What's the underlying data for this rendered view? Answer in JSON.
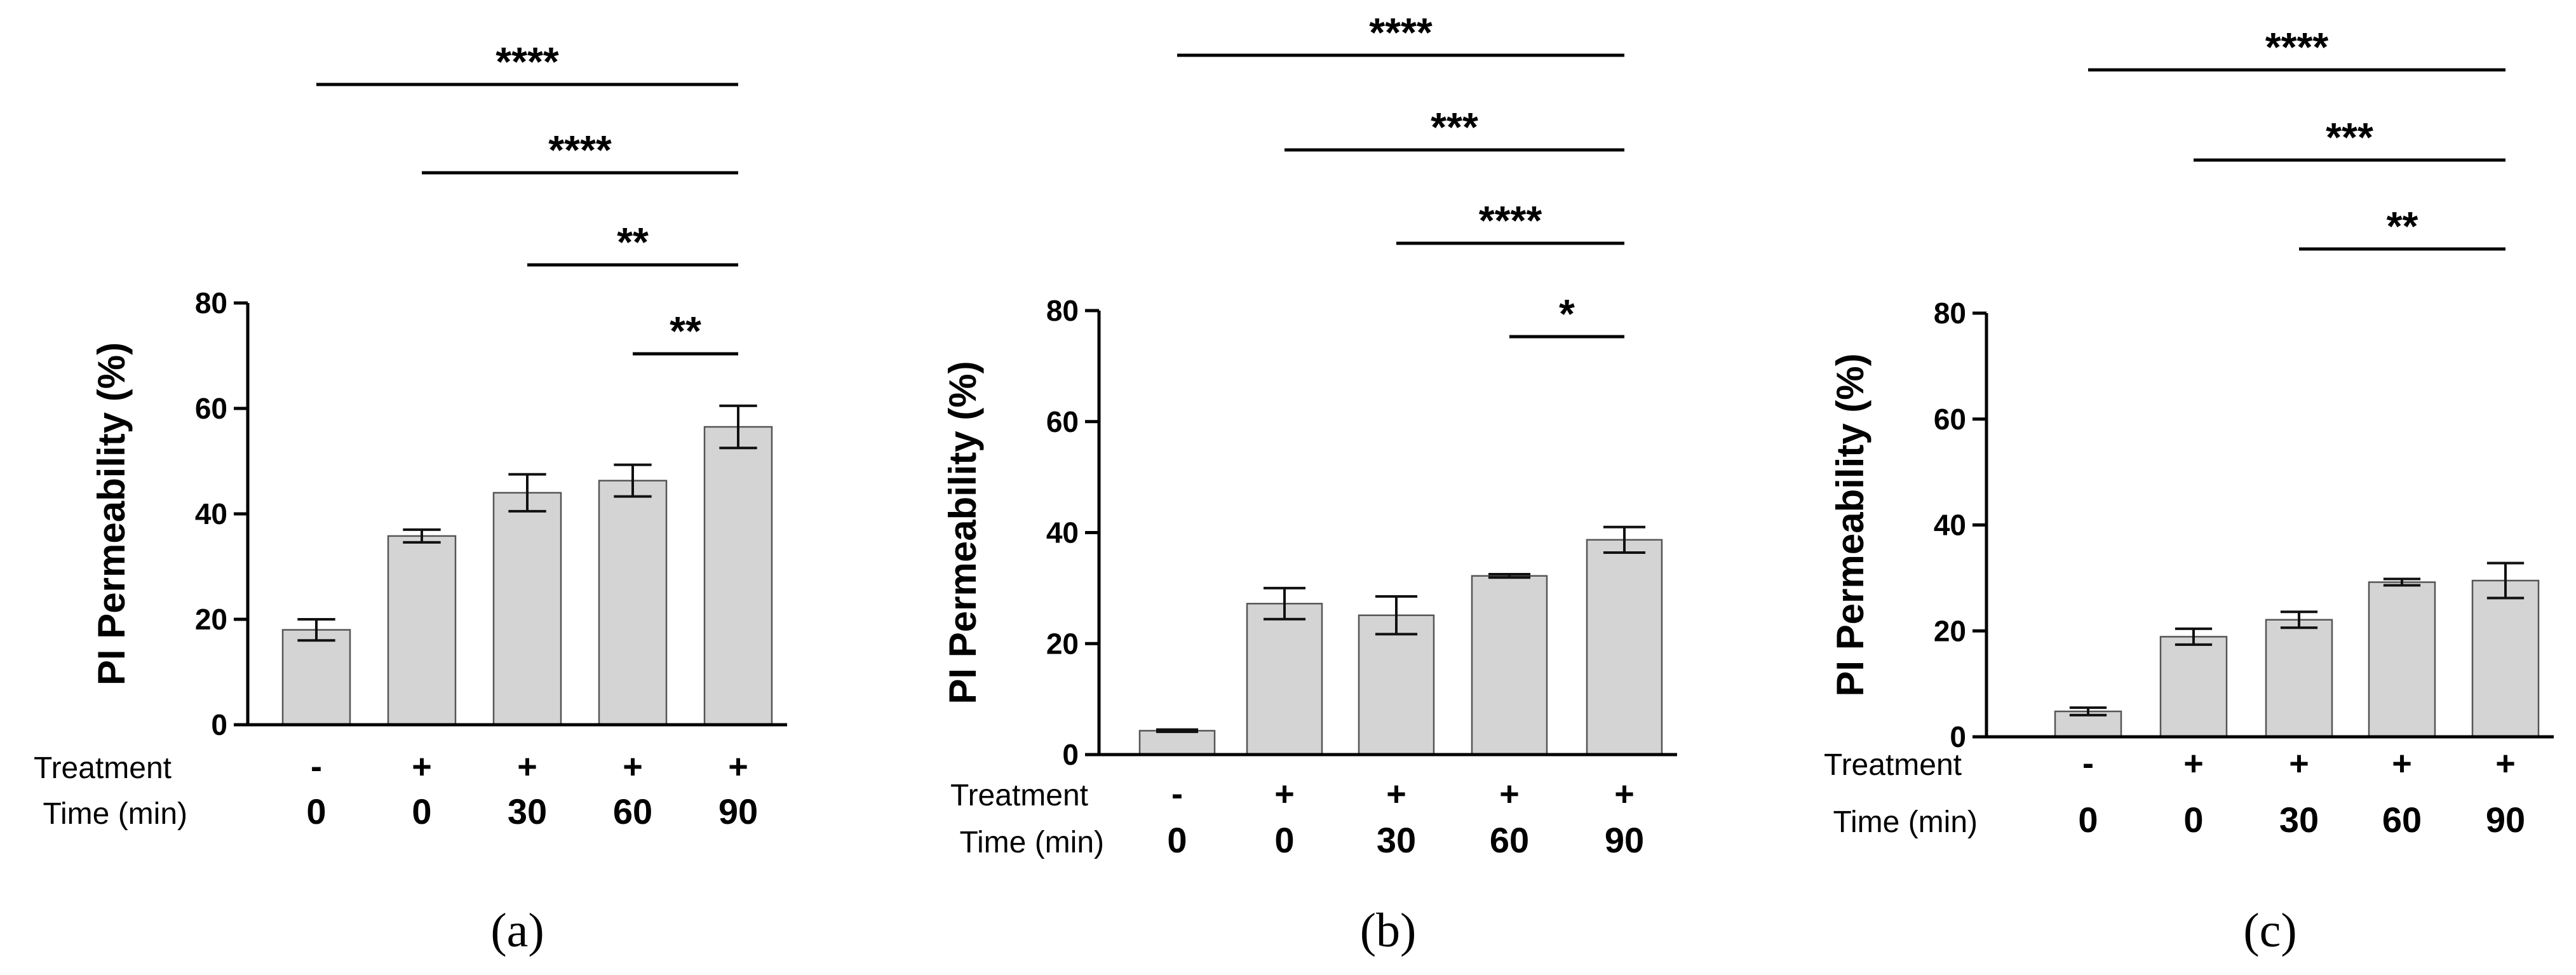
{
  "colors": {
    "bar_fill": "#d4d4d4",
    "bar_stroke": "#555555",
    "axis": "#000000",
    "text": "#000000"
  },
  "chart_data": [
    {
      "type": "bar",
      "panel_label": "(a)",
      "ylabel": "PI Permeability (%)",
      "ylim": [
        0,
        80
      ],
      "yticks": [
        "0",
        "20",
        "40",
        "60",
        "80"
      ],
      "row_labels": [
        "Treatment",
        "Time (min)"
      ],
      "treatment": [
        "-",
        "+",
        "+",
        "+",
        "+"
      ],
      "time": [
        "0",
        "0",
        "30",
        "60",
        "90"
      ],
      "values": [
        18,
        35.8,
        44,
        46.3,
        56.5
      ],
      "errors": [
        2,
        1.2,
        3.5,
        3,
        4
      ],
      "comparisons": [
        {
          "from": 0,
          "to": 4,
          "label": "****"
        },
        {
          "from": 1,
          "to": 4,
          "label": "****"
        },
        {
          "from": 2,
          "to": 4,
          "label": "**"
        },
        {
          "from": 3,
          "to": 4,
          "label": "**"
        }
      ]
    },
    {
      "type": "bar",
      "panel_label": "(b)",
      "ylabel": "PI Permeability (%)",
      "ylim": [
        0,
        80
      ],
      "yticks": [
        "0",
        "20",
        "40",
        "60",
        "80"
      ],
      "row_labels": [
        "Treatment",
        "Time (min)"
      ],
      "treatment": [
        "-",
        "+",
        "+",
        "+",
        "+"
      ],
      "time": [
        "0",
        "0",
        "30",
        "60",
        "90"
      ],
      "values": [
        4.3,
        27.2,
        25.1,
        32.2,
        38.7
      ],
      "errors": [
        0.2,
        2.8,
        3.4,
        0.3,
        2.3
      ],
      "comparisons": [
        {
          "from": 0,
          "to": 4,
          "label": "****"
        },
        {
          "from": 1,
          "to": 4,
          "label": "***"
        },
        {
          "from": 2,
          "to": 4,
          "label": "****"
        },
        {
          "from": 3,
          "to": 4,
          "label": "*"
        }
      ]
    },
    {
      "type": "bar",
      "panel_label": "(c)",
      "ylabel": "PI Permeability (%)",
      "ylim": [
        0,
        80
      ],
      "yticks": [
        "0",
        "20",
        "40",
        "60",
        "80"
      ],
      "row_labels": [
        "Treatment",
        "Time (min)"
      ],
      "treatment": [
        "-",
        "+",
        "+",
        "+",
        "+"
      ],
      "time": [
        "0",
        "0",
        "30",
        "60",
        "90"
      ],
      "values": [
        4.8,
        18.9,
        22.1,
        29.2,
        29.5
      ],
      "errors": [
        0.7,
        1.5,
        1.5,
        0.6,
        3.3
      ],
      "comparisons": [
        {
          "from": 0,
          "to": 4,
          "label": "****"
        },
        {
          "from": 1,
          "to": 4,
          "label": "***"
        },
        {
          "from": 2,
          "to": 4,
          "label": "**"
        }
      ]
    }
  ]
}
